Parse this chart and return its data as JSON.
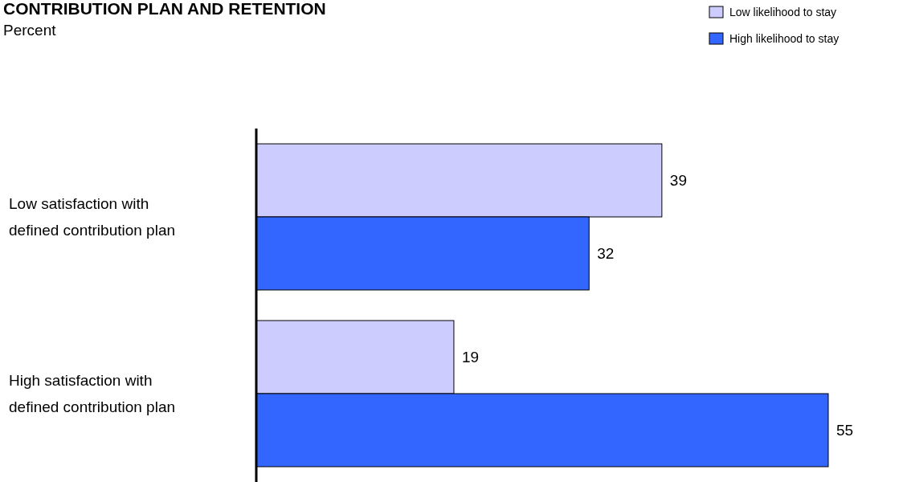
{
  "chart_data": {
    "type": "bar",
    "orientation": "horizontal",
    "title": "CONTRIBUTION PLAN AND RETENTION",
    "subtitle": "Percent",
    "categories": [
      "Low satisfaction with defined contribution plan",
      "High satisfaction with defined contribution plan"
    ],
    "series": [
      {
        "name": "Low likelihood to stay",
        "color": "#ccccff",
        "values": [
          39,
          19
        ]
      },
      {
        "name": "High likelihood to stay",
        "color": "#3366ff",
        "values": [
          32,
          55
        ]
      }
    ],
    "data_labels": true,
    "legend": "top right"
  }
}
